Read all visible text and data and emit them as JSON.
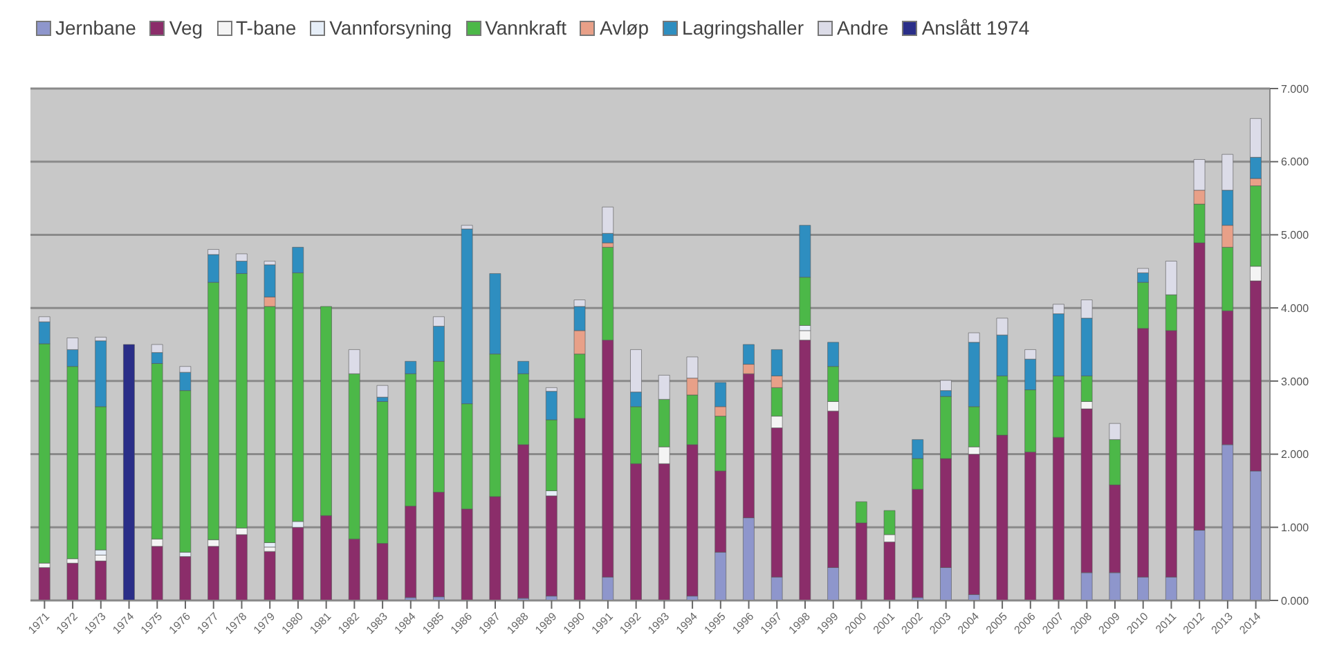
{
  "chart_data": {
    "type": "bar",
    "stacked": true,
    "categories": [
      "1971",
      "1972",
      "1973",
      "1974",
      "1975",
      "1976",
      "1977",
      "1978",
      "1979",
      "1980",
      "1981",
      "1982",
      "1983",
      "1984",
      "1985",
      "1986",
      "1987",
      "1988",
      "1989",
      "1990",
      "1991",
      "1992",
      "1993",
      "1994",
      "1995",
      "1996",
      "1997",
      "1998",
      "1999",
      "2000",
      "2001",
      "2002",
      "2003",
      "2004",
      "2005",
      "2006",
      "2007",
      "2008",
      "2009",
      "2010",
      "2011",
      "2012",
      "2013",
      "2014"
    ],
    "series": [
      {
        "name": "Jernbane",
        "color": "#8e96cc",
        "values": [
          0,
          0,
          0,
          0,
          0,
          0,
          0,
          0,
          0,
          0,
          0,
          0,
          0,
          0.04,
          0.05,
          0,
          0,
          0.03,
          0.06,
          0,
          0.32,
          0,
          0,
          0.06,
          0.66,
          1.13,
          0.32,
          0,
          0.45,
          0,
          0,
          0.04,
          0.45,
          0.08,
          0,
          0,
          0,
          0.38,
          0.38,
          0.32,
          0.32,
          0.96,
          2.13,
          1.77
        ]
      },
      {
        "name": "Veg",
        "color": "#8b2d6a",
        "values": [
          0.45,
          0.51,
          0.54,
          0,
          0.74,
          0.6,
          0.74,
          0.9,
          0.67,
          1.0,
          1.16,
          0.84,
          0.78,
          1.25,
          1.43,
          1.25,
          1.42,
          2.1,
          1.37,
          2.49,
          3.24,
          1.87,
          1.87,
          2.07,
          1.11,
          1.97,
          2.04,
          3.56,
          2.14,
          1.06,
          0.8,
          1.48,
          1.49,
          1.92,
          2.26,
          2.03,
          2.23,
          2.24,
          1.2,
          3.4,
          3.37,
          3.93,
          1.83,
          2.6
        ]
      },
      {
        "name": "T-bane",
        "color": "#f4f4f4",
        "values": [
          0.06,
          0.06,
          0.08,
          0,
          0.1,
          0,
          0.09,
          0.09,
          0.06,
          0,
          0,
          0,
          0,
          0,
          0,
          0,
          0,
          0,
          0,
          0,
          0,
          0,
          0.23,
          0,
          0,
          0,
          0.16,
          0.13,
          0.13,
          0,
          0.1,
          0,
          0,
          0.1,
          0,
          0,
          0,
          0.1,
          0,
          0,
          0,
          0,
          0,
          0.2
        ]
      },
      {
        "name": "Vannforsyning",
        "color": "#e6eef8",
        "values": [
          0,
          0,
          0.07,
          0,
          0,
          0.06,
          0,
          0,
          0.06,
          0.08,
          0,
          0,
          0,
          0,
          0,
          0,
          0,
          0,
          0.07,
          0,
          0,
          0,
          0,
          0,
          0,
          0,
          0,
          0.07,
          0,
          0,
          0,
          0,
          0,
          0,
          0,
          0,
          0,
          0,
          0,
          0,
          0,
          0,
          0,
          0
        ]
      },
      {
        "name": "Vannkraft",
        "color": "#4cb848",
        "values": [
          3.0,
          2.63,
          1.96,
          0,
          2.4,
          2.21,
          3.52,
          3.48,
          3.23,
          3.4,
          2.86,
          2.26,
          1.94,
          1.81,
          1.79,
          1.44,
          1.95,
          0.97,
          0.97,
          0.88,
          1.27,
          0.78,
          0.65,
          0.68,
          0.75,
          0,
          0.39,
          0.66,
          0.48,
          0.29,
          0.33,
          0.42,
          0.85,
          0.55,
          0.81,
          0.85,
          0.84,
          0.35,
          0.62,
          0.63,
          0.49,
          0.53,
          0.87,
          1.1
        ]
      },
      {
        "name": "Avløp",
        "color": "#e8a088",
        "values": [
          0,
          0,
          0,
          0,
          0,
          0,
          0,
          0,
          0.13,
          0,
          0,
          0,
          0,
          0,
          0,
          0,
          0,
          0,
          0,
          0.32,
          0.06,
          0,
          0,
          0.23,
          0.13,
          0.13,
          0.16,
          0,
          0,
          0,
          0,
          0,
          0,
          0,
          0,
          0,
          0,
          0,
          0,
          0,
          0,
          0.19,
          0.3,
          0.1
        ]
      },
      {
        "name": "Lagringshaller",
        "color": "#2e8ec0",
        "values": [
          0.3,
          0.23,
          0.9,
          0,
          0.15,
          0.25,
          0.38,
          0.17,
          0.44,
          0.35,
          0,
          0,
          0.06,
          0.17,
          0.48,
          2.39,
          1.1,
          0.17,
          0.39,
          0.33,
          0.13,
          0.2,
          0,
          0,
          0.33,
          0.27,
          0.36,
          0.71,
          0.33,
          0,
          0,
          0.26,
          0.08,
          0.88,
          0.56,
          0.42,
          0.85,
          0.79,
          0,
          0.13,
          0,
          0,
          0.48,
          0.29
        ]
      },
      {
        "name": "Andre",
        "color": "#dcdce8",
        "values": [
          0.07,
          0.16,
          0.05,
          0,
          0.11,
          0.08,
          0.07,
          0.1,
          0.05,
          0,
          0,
          0.33,
          0.16,
          0,
          0.13,
          0.05,
          0,
          0,
          0.05,
          0.09,
          0.36,
          0.58,
          0.33,
          0.29,
          0,
          0,
          0,
          0,
          0,
          0,
          0,
          0,
          0.14,
          0.13,
          0.23,
          0.13,
          0.13,
          0.25,
          0.22,
          0.06,
          0.46,
          0.42,
          0.49,
          0.53
        ]
      },
      {
        "name": "Anslått 1974",
        "color": "#2a2e88",
        "values": [
          0,
          0,
          0,
          3.5,
          0,
          0,
          0,
          0,
          0,
          0,
          0,
          0,
          0,
          0,
          0,
          0,
          0,
          0,
          0,
          0,
          0,
          0,
          0,
          0,
          0,
          0,
          0,
          0,
          0,
          0,
          0,
          0,
          0,
          0,
          0,
          0,
          0,
          0,
          0,
          0,
          0,
          0,
          0,
          0
        ]
      }
    ],
    "ylim": [
      0,
      7
    ],
    "yticks": [
      {
        "value": 0,
        "label": "0.000"
      },
      {
        "value": 1,
        "label": "1.000"
      },
      {
        "value": 2,
        "label": "2.000"
      },
      {
        "value": 3,
        "label": "3.000"
      },
      {
        "value": 4,
        "label": "4.000"
      },
      {
        "value": 5,
        "label": "5.000"
      },
      {
        "value": 6,
        "label": "6.000"
      },
      {
        "value": 7,
        "label": "7.000"
      }
    ],
    "grid": "y",
    "legend": "top left"
  }
}
